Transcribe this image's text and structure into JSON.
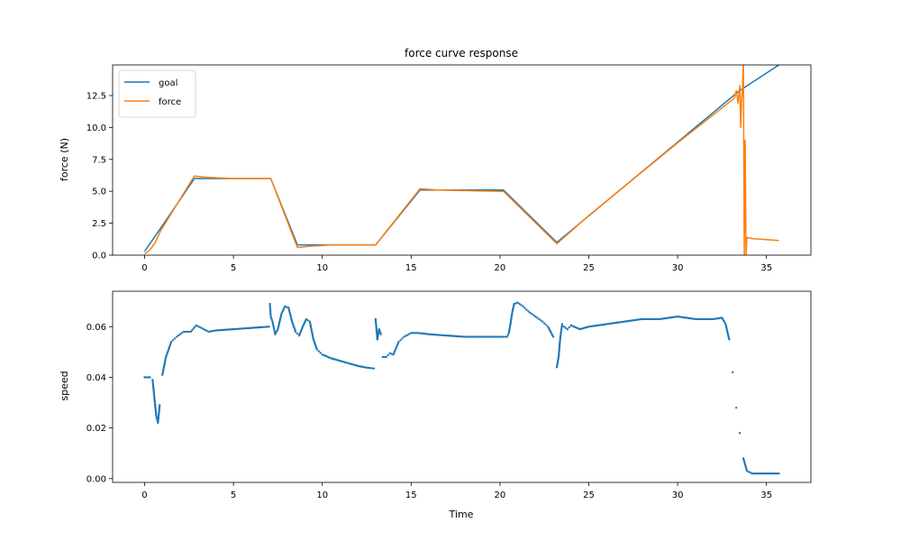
{
  "chart_data": [
    {
      "type": "line",
      "title": "force curve response",
      "xlabel": "",
      "ylabel": "force (N)",
      "xlim": [
        -1.8,
        37.5
      ],
      "ylim": [
        0,
        14.9
      ],
      "xticks": [
        0,
        5,
        10,
        15,
        20,
        25,
        30,
        35
      ],
      "yticks": [
        0.0,
        2.5,
        5.0,
        7.5,
        10.0,
        12.5
      ],
      "ytick_labels": [
        "0.0",
        "2.5",
        "5.0",
        "7.5",
        "10.0",
        "12.5"
      ],
      "grid": false,
      "legend": "top-left",
      "series": [
        {
          "name": "goal",
          "color": "#1f77b4",
          "x": [
            0,
            0.8,
            2.8,
            7.1,
            8.6,
            13.0,
            15.5,
            20.2,
            23.2,
            33.5,
            35.7
          ],
          "y": [
            0.3,
            1.9,
            6.0,
            6.0,
            0.8,
            0.8,
            5.1,
            5.1,
            1.0,
            12.9,
            14.9
          ]
        },
        {
          "name": "force",
          "color": "#ff7f0e",
          "x": [
            0,
            0.3,
            0.6,
            0.9,
            2.8,
            3.5,
            5.0,
            7.1,
            8.6,
            9.3,
            10.5,
            13.0,
            15.5,
            16.5,
            20.2,
            23.2,
            25.0,
            30.0,
            33.2,
            33.3,
            33.4,
            33.5,
            33.55,
            33.6,
            33.65,
            33.7,
            33.75,
            33.8,
            33.85,
            33.9,
            34.2,
            35.7
          ],
          "y": [
            0.1,
            0.4,
            1.0,
            1.9,
            6.2,
            6.1,
            6.0,
            6.0,
            0.6,
            0.7,
            0.8,
            0.8,
            5.2,
            5.1,
            5.0,
            0.9,
            3.1,
            8.8,
            12.3,
            12.9,
            11.9,
            13.3,
            10.0,
            12.0,
            13.1,
            15.2,
            0.0,
            9.0,
            0.0,
            1.4,
            1.3,
            1.15
          ]
        }
      ]
    },
    {
      "type": "scatter",
      "title": "",
      "xlabel": "Time",
      "ylabel": "speed",
      "xlim": [
        -1.8,
        37.5
      ],
      "ylim": [
        -0.0015,
        0.074
      ],
      "xticks": [
        0,
        5,
        10,
        15,
        20,
        25,
        30,
        35
      ],
      "yticks": [
        0.0,
        0.02,
        0.04,
        0.06
      ],
      "ytick_labels": [
        "0.00",
        "0.02",
        "0.04",
        "0.06"
      ],
      "grid": false,
      "series": [
        {
          "name": "",
          "color": "#1f77b4",
          "x": [
            0,
            0.3,
            0.45,
            0.55,
            0.65,
            0.75,
            0.85,
            1.0,
            1.2,
            1.5,
            1.8,
            2.2,
            2.6,
            2.9,
            3.2,
            3.6,
            4.0,
            5.0,
            6.0,
            7.0,
            7.05,
            7.1,
            7.2,
            7.35,
            7.5,
            7.7,
            7.9,
            8.1,
            8.3,
            8.5,
            8.7,
            8.9,
            9.1,
            9.3,
            9.5,
            9.7,
            10.0,
            10.5,
            11.0,
            11.5,
            12.0,
            12.5,
            12.9,
            13.0,
            13.1,
            13.2,
            13.3,
            13.4,
            13.6,
            13.8,
            14.0,
            14.3,
            14.6,
            15.0,
            15.4,
            16.0,
            17.0,
            18.0,
            19.0,
            20.0,
            20.4,
            20.5,
            20.6,
            20.7,
            20.8,
            21.0,
            21.3,
            21.6,
            22.0,
            22.4,
            22.7,
            23.0,
            23.2,
            23.3,
            23.4,
            23.5,
            23.6,
            23.8,
            24.0,
            24.5,
            25.0,
            26.0,
            27.0,
            28.0,
            29.0,
            30.0,
            31.0,
            32.0,
            32.5,
            32.7,
            32.9,
            33.1,
            33.3,
            33.5,
            33.7,
            33.9,
            34.2,
            35.0,
            35.7
          ],
          "y": [
            0.04,
            0.04,
            0.039,
            0.032,
            0.025,
            0.022,
            0.029,
            0.041,
            0.048,
            0.054,
            0.056,
            0.058,
            0.058,
            0.0605,
            0.0595,
            0.058,
            0.0585,
            0.059,
            0.0595,
            0.06,
            0.069,
            0.064,
            0.062,
            0.057,
            0.059,
            0.065,
            0.068,
            0.0675,
            0.062,
            0.058,
            0.0565,
            0.06,
            0.063,
            0.062,
            0.055,
            0.051,
            0.049,
            0.0475,
            0.0465,
            0.0455,
            0.0445,
            0.0438,
            0.0435,
            0.063,
            0.055,
            0.059,
            0.057,
            0.048,
            0.048,
            0.0495,
            0.049,
            0.054,
            0.056,
            0.0575,
            0.0575,
            0.057,
            0.0565,
            0.056,
            0.056,
            0.056,
            0.056,
            0.0575,
            0.0615,
            0.066,
            0.069,
            0.0695,
            0.068,
            0.066,
            0.064,
            0.062,
            0.06,
            0.056,
            0.044,
            0.048,
            0.056,
            0.061,
            0.06,
            0.059,
            0.0605,
            0.059,
            0.06,
            0.061,
            0.062,
            0.063,
            0.063,
            0.064,
            0.063,
            0.063,
            0.0635,
            0.061,
            0.055,
            0.042,
            0.028,
            0.018,
            0.008,
            0.003,
            0.002,
            0.002,
            0.002
          ]
        }
      ]
    }
  ]
}
